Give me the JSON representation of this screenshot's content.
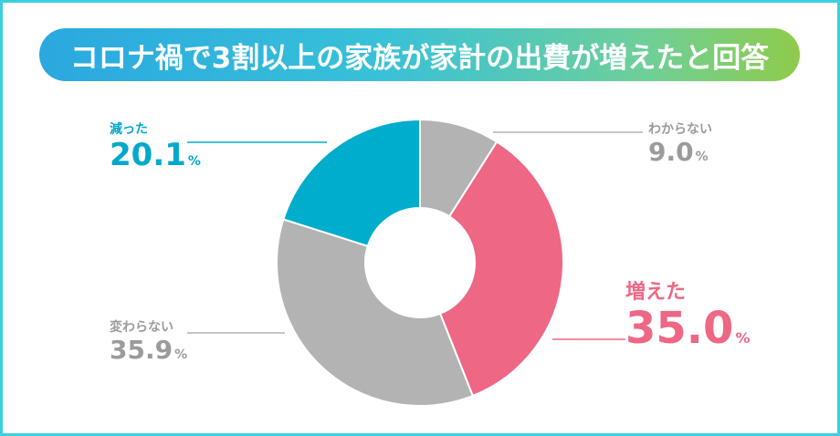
{
  "title": "コロナ禍で3割以上の家族が家計の出費が増えたと回答",
  "colors": {
    "increased": "#ee6784",
    "unknown": "#b3b3b3",
    "unchanged": "#b3b3b3",
    "decreased": "#00adcc",
    "border": "#3ccfe0"
  },
  "chart_data": {
    "type": "pie",
    "donut": true,
    "title": "コロナ禍で3割以上の家族が家計の出費が増えたと回答",
    "unit": "%",
    "slices": [
      {
        "label": "わからない",
        "value": 9.0,
        "display": "9.0",
        "color": "#b3b3b3"
      },
      {
        "label": "増えた",
        "value": 35.0,
        "display": "35.0",
        "color": "#ee6784"
      },
      {
        "label": "変わらない",
        "value": 35.9,
        "display": "35.9",
        "color": "#b3b3b3"
      },
      {
        "label": "減った",
        "value": 20.1,
        "display": "20.1",
        "color": "#00adcc"
      }
    ]
  }
}
